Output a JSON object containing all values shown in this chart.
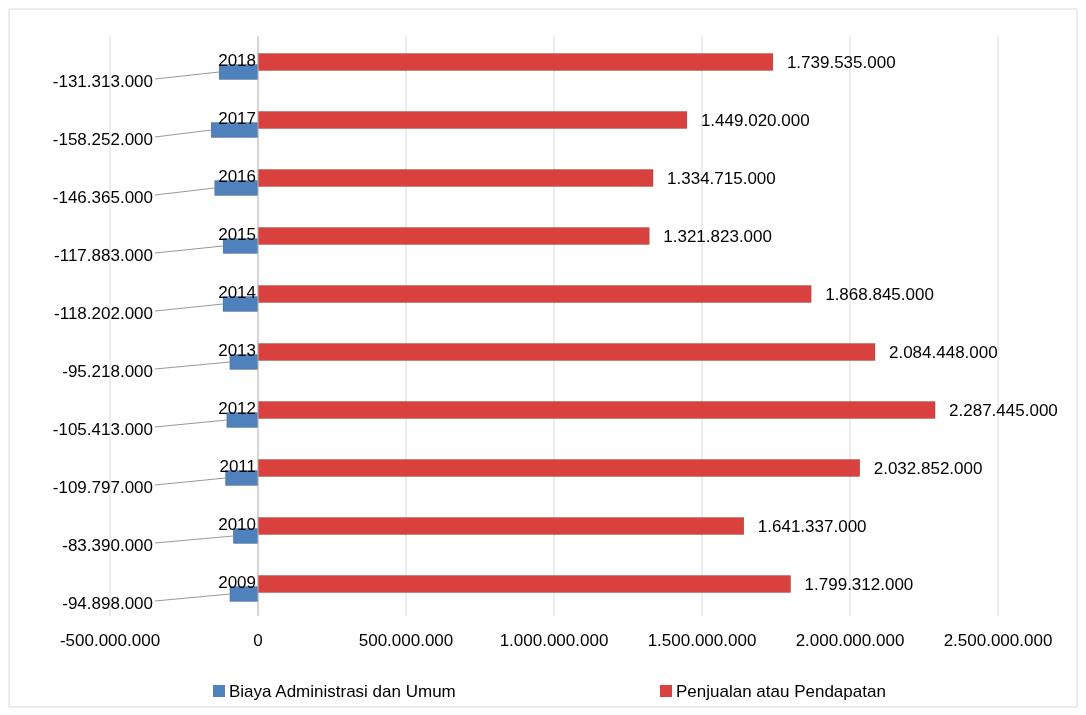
{
  "chart_data": {
    "type": "bar",
    "orientation": "horizontal",
    "categories": [
      "2018",
      "2017",
      "2016",
      "2015",
      "2014",
      "2013",
      "2012",
      "2011",
      "2010",
      "2009"
    ],
    "series": [
      {
        "name": "Biaya Administrasi dan Umum",
        "color": "#4f81bd",
        "values": [
          -131313000,
          -158252000,
          -146365000,
          -117883000,
          -118202000,
          -95218000,
          -105413000,
          -109797000,
          -83390000,
          -94898000
        ],
        "value_labels": [
          "-131.313.000",
          "-158.252.000",
          "-146.365.000",
          "-117.883.000",
          "-118.202.000",
          "-95.218.000",
          "-105.413.000",
          "-109.797.000",
          "-83.390.000",
          "-94.898.000"
        ]
      },
      {
        "name": "Penjualan atau Pendapatan",
        "color": "#d9413f",
        "values": [
          1739535000,
          1449020000,
          1334715000,
          1321823000,
          1868845000,
          2084448000,
          2287445000,
          2032852000,
          1641337000,
          1799312000
        ],
        "value_labels": [
          "1.739.535.000",
          "1.449.020.000",
          "1.334.715.000",
          "1.321.823.000",
          "1.868.845.000",
          "2.084.448.000",
          "2.287.445.000",
          "2.032.852.000",
          "1.641.337.000",
          "1.799.312.000"
        ]
      }
    ],
    "xlim": [
      -500000000,
      2500000000
    ],
    "xticks": [
      {
        "value": -500000000,
        "label": "-500.000.000"
      },
      0,
      {
        "value": 500000000,
        "label": "500.000.000"
      },
      {
        "value": 1000000000,
        "label": "1.000.000.000"
      },
      {
        "value": 1500000000,
        "label": "1.500.000.000"
      },
      {
        "value": 2000000000,
        "label": "2.000.000.000"
      },
      {
        "value": 2500000000,
        "label": "2.500.000.000"
      }
    ],
    "grid": "x",
    "legend": "bottom"
  }
}
